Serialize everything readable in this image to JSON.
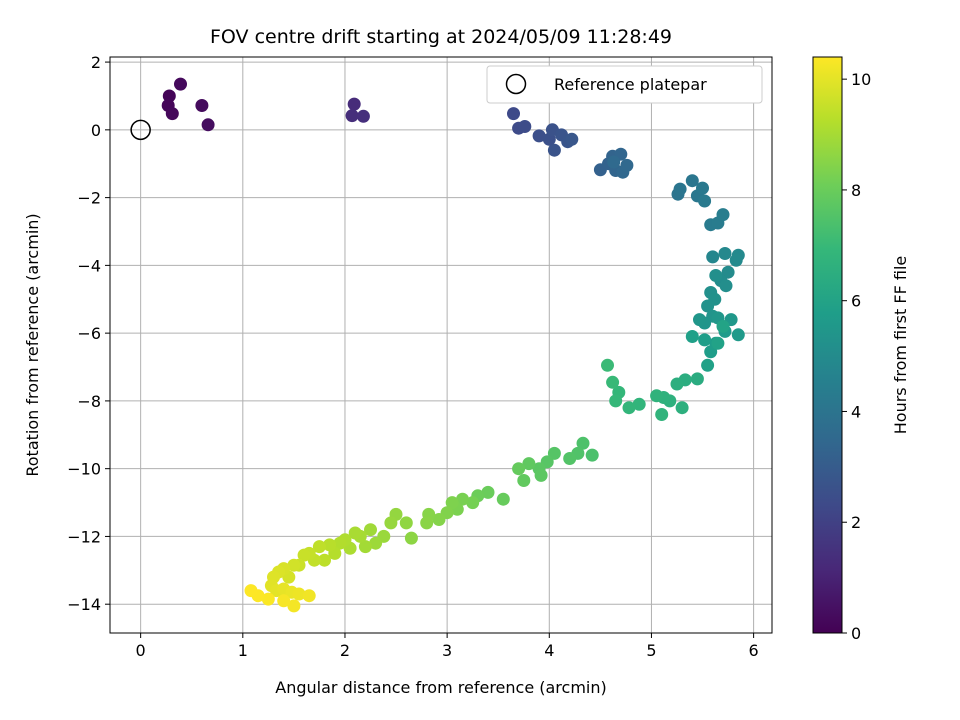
{
  "chart_data": {
    "type": "scatter",
    "title": "FOV centre drift starting at 2024/05/09 11:28:49",
    "xlabel": "Angular distance from reference (arcmin)",
    "ylabel": "Rotation from reference (arcmin)",
    "xlim": [
      -0.3,
      6.18
    ],
    "ylim": [
      -14.85,
      2.15
    ],
    "xticks": [
      0,
      1,
      2,
      3,
      4,
      5,
      6
    ],
    "yticks": [
      2,
      0,
      -2,
      -4,
      -6,
      -8,
      -10,
      -12,
      -14
    ],
    "grid": true,
    "legend": {
      "position": "top-right",
      "entries": [
        "Reference platepar"
      ]
    },
    "reference_point": {
      "x": 0,
      "y": 0
    },
    "colorbar": {
      "label": "Hours from first FF file",
      "colormap": "viridis",
      "range": [
        0,
        10.4
      ],
      "ticks": [
        0,
        2,
        4,
        6,
        8,
        10
      ]
    },
    "colors": {
      "viridis": [
        "#440154",
        "#482878",
        "#3e4a89",
        "#31688e",
        "#26828e",
        "#1f9e89",
        "#35b779",
        "#6ece58",
        "#b5de2b",
        "#fde725"
      ]
    },
    "series": [
      {
        "points": [
          [
            0.28,
            1.0,
            0.1
          ],
          [
            0.27,
            0.72,
            0.15
          ],
          [
            0.31,
            0.48,
            0.2
          ],
          [
            0.39,
            1.35,
            0.25
          ],
          [
            0.6,
            0.72,
            0.3
          ],
          [
            0.66,
            0.15,
            0.35
          ],
          [
            2.09,
            0.76,
            1.3
          ],
          [
            2.07,
            0.42,
            1.35
          ],
          [
            2.18,
            0.4,
            1.4
          ],
          [
            3.65,
            0.48,
            2.3
          ],
          [
            3.7,
            0.05,
            2.35
          ],
          [
            3.76,
            0.1,
            2.4
          ],
          [
            3.9,
            -0.18,
            2.5
          ],
          [
            4.0,
            -0.28,
            2.55
          ],
          [
            4.03,
            0.0,
            2.6
          ],
          [
            4.05,
            -0.6,
            2.65
          ],
          [
            4.12,
            -0.15,
            2.7
          ],
          [
            4.18,
            -0.35,
            2.75
          ],
          [
            4.22,
            -0.28,
            2.8
          ],
          [
            4.5,
            -1.18,
            3.2
          ],
          [
            4.58,
            -1.0,
            3.25
          ],
          [
            4.62,
            -0.78,
            3.3
          ],
          [
            4.65,
            -1.2,
            3.35
          ],
          [
            4.7,
            -0.72,
            3.4
          ],
          [
            4.72,
            -1.25,
            3.45
          ],
          [
            4.76,
            -1.05,
            3.5
          ],
          [
            4.63,
            -0.95,
            3.55
          ],
          [
            5.26,
            -1.9,
            4.0
          ],
          [
            5.28,
            -1.75,
            4.05
          ],
          [
            5.4,
            -1.5,
            4.1
          ],
          [
            5.45,
            -1.95,
            4.15
          ],
          [
            5.5,
            -1.72,
            4.2
          ],
          [
            5.52,
            -2.1,
            4.25
          ],
          [
            5.58,
            -2.8,
            4.3
          ],
          [
            5.65,
            -2.75,
            4.35
          ],
          [
            5.7,
            -2.5,
            4.4
          ],
          [
            5.6,
            -3.75,
            4.8
          ],
          [
            5.72,
            -3.65,
            4.85
          ],
          [
            5.85,
            -3.7,
            4.9
          ],
          [
            5.83,
            -3.85,
            4.95
          ],
          [
            5.75,
            -4.2,
            5.0
          ],
          [
            5.68,
            -4.45,
            5.05
          ],
          [
            5.73,
            -4.6,
            5.1
          ],
          [
            5.63,
            -4.3,
            5.15
          ],
          [
            5.58,
            -4.8,
            5.2
          ],
          [
            5.62,
            -5.0,
            5.25
          ],
          [
            5.55,
            -5.2,
            5.3
          ],
          [
            5.6,
            -5.5,
            5.35
          ],
          [
            5.52,
            -5.7,
            5.4
          ],
          [
            5.47,
            -5.6,
            5.45
          ],
          [
            5.65,
            -5.55,
            5.5
          ],
          [
            5.78,
            -5.6,
            5.55
          ],
          [
            5.85,
            -6.05,
            5.6
          ],
          [
            5.72,
            -5.95,
            5.65
          ],
          [
            5.63,
            -6.3,
            5.7
          ],
          [
            5.58,
            -6.55,
            5.75
          ],
          [
            5.52,
            -6.2,
            5.8
          ],
          [
            5.4,
            -6.1,
            5.85
          ],
          [
            5.55,
            -6.95,
            5.9
          ],
          [
            5.65,
            -6.3,
            5.95
          ],
          [
            5.7,
            -5.8,
            6.0
          ],
          [
            5.45,
            -7.35,
            6.4
          ],
          [
            5.33,
            -7.38,
            6.45
          ],
          [
            5.25,
            -7.5,
            6.5
          ],
          [
            5.3,
            -8.2,
            6.55
          ],
          [
            5.18,
            -8.0,
            6.6
          ],
          [
            5.12,
            -7.9,
            6.65
          ],
          [
            5.05,
            -7.85,
            6.7
          ],
          [
            5.1,
            -8.4,
            6.75
          ],
          [
            4.88,
            -8.1,
            6.8
          ],
          [
            4.78,
            -8.2,
            6.85
          ],
          [
            4.68,
            -7.75,
            6.9
          ],
          [
            4.65,
            -8.0,
            6.95
          ],
          [
            4.62,
            -7.45,
            7.0
          ],
          [
            4.57,
            -6.95,
            7.05
          ],
          [
            4.42,
            -9.6,
            7.4
          ],
          [
            4.33,
            -9.25,
            7.45
          ],
          [
            4.28,
            -9.55,
            7.5
          ],
          [
            4.2,
            -9.7,
            7.55
          ],
          [
            4.05,
            -9.55,
            7.6
          ],
          [
            3.98,
            -9.8,
            7.65
          ],
          [
            3.9,
            -10.0,
            7.7
          ],
          [
            3.92,
            -10.2,
            7.75
          ],
          [
            3.8,
            -9.85,
            7.8
          ],
          [
            3.75,
            -10.35,
            7.85
          ],
          [
            3.7,
            -10.0,
            7.9
          ],
          [
            3.55,
            -10.9,
            7.95
          ],
          [
            3.4,
            -10.7,
            8.0
          ],
          [
            3.3,
            -10.8,
            8.05
          ],
          [
            3.25,
            -11.0,
            8.2
          ],
          [
            3.15,
            -10.9,
            8.25
          ],
          [
            3.1,
            -11.2,
            8.3
          ],
          [
            3.05,
            -11.0,
            8.35
          ],
          [
            3.0,
            -11.3,
            8.4
          ],
          [
            2.92,
            -11.5,
            8.45
          ],
          [
            2.82,
            -11.35,
            8.5
          ],
          [
            2.8,
            -11.6,
            8.55
          ],
          [
            2.65,
            -12.05,
            8.6
          ],
          [
            2.6,
            -11.6,
            8.65
          ],
          [
            2.5,
            -11.35,
            8.7
          ],
          [
            2.45,
            -11.6,
            8.75
          ],
          [
            2.38,
            -12.0,
            8.8
          ],
          [
            2.3,
            -12.2,
            8.85
          ],
          [
            2.25,
            -11.8,
            8.9
          ],
          [
            2.2,
            -12.3,
            8.95
          ],
          [
            2.15,
            -12.0,
            9.0
          ],
          [
            2.1,
            -11.9,
            9.05
          ],
          [
            2.05,
            -12.35,
            9.1
          ],
          [
            2.0,
            -12.1,
            9.15
          ],
          [
            1.95,
            -12.2,
            9.2
          ],
          [
            1.9,
            -12.5,
            9.25
          ],
          [
            1.85,
            -12.25,
            9.3
          ],
          [
            1.8,
            -12.7,
            9.35
          ],
          [
            1.75,
            -12.3,
            9.4
          ],
          [
            1.7,
            -12.7,
            9.45
          ],
          [
            1.65,
            -12.5,
            9.5
          ],
          [
            1.6,
            -12.55,
            9.55
          ],
          [
            1.55,
            -12.85,
            9.6
          ],
          [
            1.5,
            -12.85,
            9.7
          ],
          [
            1.45,
            -13.2,
            9.75
          ],
          [
            1.4,
            -12.95,
            9.8
          ],
          [
            1.35,
            -13.05,
            9.85
          ],
          [
            1.3,
            -13.2,
            9.9
          ],
          [
            1.28,
            -13.45,
            9.95
          ],
          [
            1.33,
            -13.6,
            10.0
          ],
          [
            1.4,
            -13.55,
            10.05
          ],
          [
            1.48,
            -13.65,
            10.1
          ],
          [
            1.55,
            -13.7,
            10.15
          ],
          [
            1.65,
            -13.75,
            10.2
          ],
          [
            1.5,
            -14.05,
            10.25
          ],
          [
            1.4,
            -13.9,
            10.3
          ],
          [
            1.25,
            -13.85,
            10.35
          ],
          [
            1.15,
            -13.75,
            10.38
          ],
          [
            1.08,
            -13.6,
            10.4
          ]
        ]
      }
    ]
  }
}
